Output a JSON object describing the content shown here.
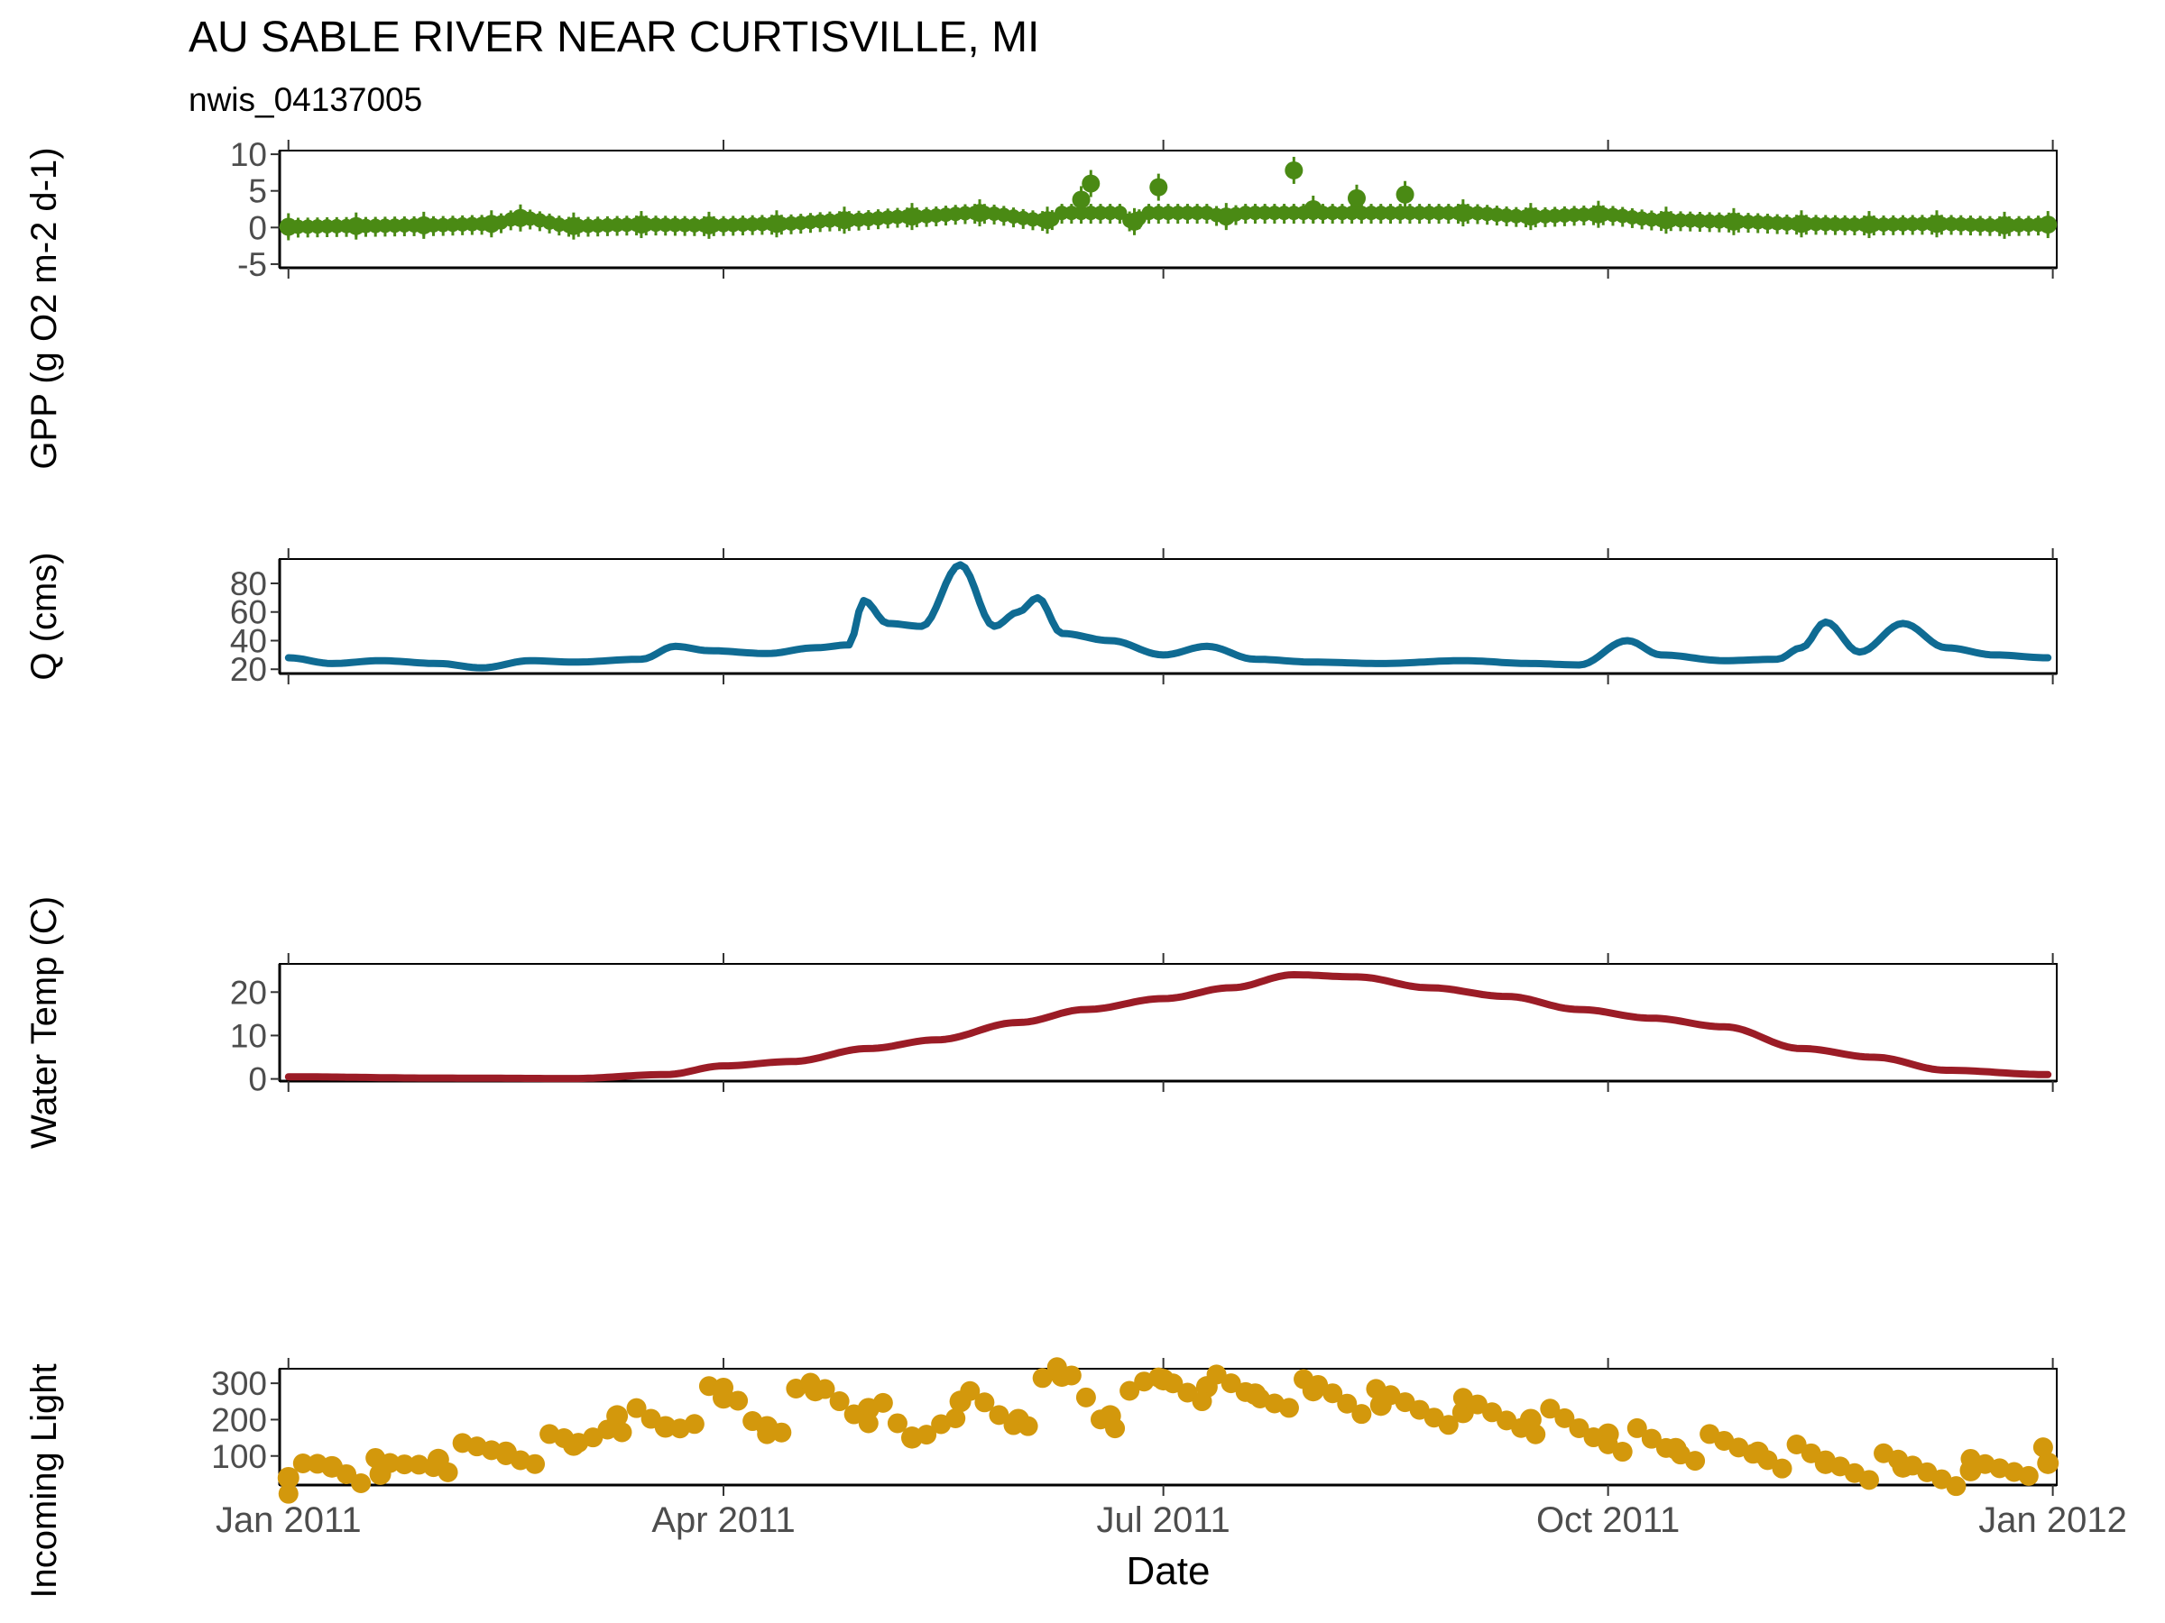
{
  "title": "AU SABLE RIVER NEAR CURTISVILLE, MI",
  "subtitle": "nwis_04137005",
  "chart_data": [
    {
      "type": "scatter",
      "name": "gpp",
      "ylabel": "GPP (g O2 m-2 d-1)",
      "ylim": [
        -5.5,
        10.5
      ],
      "yticks": [
        -5,
        0,
        5,
        10
      ],
      "ytick_labels": [
        "-5",
        "0",
        "5",
        "10"
      ],
      "color": "#4a8a14",
      "series": [
        {
          "points": [
            [
              "2011-01-01",
              0.1
            ],
            [
              "2011-01-15",
              0.2
            ],
            [
              "2011-01-29",
              0.3
            ],
            [
              "2011-02-12",
              0.5
            ],
            [
              "2011-02-18",
              1.3
            ],
            [
              "2011-03-01",
              0.2
            ],
            [
              "2011-03-15",
              0.4
            ],
            [
              "2011-03-29",
              0.3
            ],
            [
              "2011-04-12",
              0.5
            ],
            [
              "2011-04-26",
              1.0
            ],
            [
              "2011-05-10",
              1.5
            ],
            [
              "2011-05-24",
              2.0
            ],
            [
              "2011-06-07",
              1.0
            ],
            [
              "2011-06-14",
              3.8
            ],
            [
              "2011-06-16",
              6.0
            ],
            [
              "2011-06-25",
              0.8
            ],
            [
              "2011-06-30",
              5.5
            ],
            [
              "2011-07-14",
              1.5
            ],
            [
              "2011-07-28",
              7.8
            ],
            [
              "2011-08-01",
              2.5
            ],
            [
              "2011-08-10",
              4.0
            ],
            [
              "2011-08-20",
              4.5
            ],
            [
              "2011-09-01",
              2.0
            ],
            [
              "2011-09-15",
              1.5
            ],
            [
              "2011-09-29",
              1.8
            ],
            [
              "2011-10-13",
              1.0
            ],
            [
              "2011-10-27",
              0.8
            ],
            [
              "2011-11-10",
              0.5
            ],
            [
              "2011-11-24",
              0.4
            ],
            [
              "2011-12-08",
              0.5
            ],
            [
              "2011-12-22",
              0.3
            ],
            [
              "2011-12-31",
              0.4
            ]
          ]
        }
      ]
    },
    {
      "type": "line",
      "name": "discharge",
      "ylabel": "Q (cms)",
      "ylim": [
        17,
        97
      ],
      "yticks": [
        20,
        40,
        60,
        80
      ],
      "ytick_labels": [
        "20",
        "40",
        "60",
        "80"
      ],
      "color": "#0f6b93",
      "series": [
        {
          "points": [
            [
              "2011-01-01",
              28
            ],
            [
              "2011-01-10",
              24
            ],
            [
              "2011-01-20",
              26
            ],
            [
              "2011-02-01",
              24
            ],
            [
              "2011-02-10",
              21
            ],
            [
              "2011-02-20",
              26
            ],
            [
              "2011-03-01",
              25
            ],
            [
              "2011-03-15",
              27
            ],
            [
              "2011-03-22",
              36
            ],
            [
              "2011-03-29",
              33
            ],
            [
              "2011-04-10",
              31
            ],
            [
              "2011-04-20",
              35
            ],
            [
              "2011-04-27",
              37
            ],
            [
              "2011-04-30",
              68
            ],
            [
              "2011-05-05",
              52
            ],
            [
              "2011-05-12",
              50
            ],
            [
              "2011-05-20",
              93
            ],
            [
              "2011-05-27",
              50
            ],
            [
              "2011-06-01",
              60
            ],
            [
              "2011-06-05",
              70
            ],
            [
              "2011-06-10",
              45
            ],
            [
              "2011-06-20",
              40
            ],
            [
              "2011-07-01",
              30
            ],
            [
              "2011-07-10",
              36
            ],
            [
              "2011-07-20",
              27
            ],
            [
              "2011-08-01",
              25
            ],
            [
              "2011-08-15",
              24
            ],
            [
              "2011-09-01",
              26
            ],
            [
              "2011-09-15",
              24
            ],
            [
              "2011-09-25",
              23
            ],
            [
              "2011-10-05",
              40
            ],
            [
              "2011-10-12",
              30
            ],
            [
              "2011-10-25",
              26
            ],
            [
              "2011-11-05",
              27
            ],
            [
              "2011-11-10",
              35
            ],
            [
              "2011-11-15",
              53
            ],
            [
              "2011-11-22",
              32
            ],
            [
              "2011-12-01",
              52
            ],
            [
              "2011-12-10",
              35
            ],
            [
              "2011-12-20",
              30
            ],
            [
              "2011-12-31",
              28
            ]
          ]
        }
      ]
    },
    {
      "type": "line",
      "name": "water-temp",
      "ylabel": "Water Temp (C)",
      "ylim": [
        -0.5,
        26.5
      ],
      "yticks": [
        0,
        10,
        20
      ],
      "ytick_labels": [
        "0",
        "10",
        "20"
      ],
      "color": "#9b1c26",
      "series": [
        {
          "points": [
            [
              "2011-01-01",
              0.5
            ],
            [
              "2011-02-01",
              0.2
            ],
            [
              "2011-03-01",
              0.1
            ],
            [
              "2011-03-20",
              1.0
            ],
            [
              "2011-04-01",
              3.0
            ],
            [
              "2011-04-15",
              4.0
            ],
            [
              "2011-05-01",
              7.0
            ],
            [
              "2011-05-15",
              9.0
            ],
            [
              "2011-06-01",
              13.0
            ],
            [
              "2011-06-15",
              16.0
            ],
            [
              "2011-07-01",
              18.5
            ],
            [
              "2011-07-15",
              21.0
            ],
            [
              "2011-07-28",
              24.0
            ],
            [
              "2011-08-10",
              23.5
            ],
            [
              "2011-08-25",
              21.0
            ],
            [
              "2011-09-10",
              19.0
            ],
            [
              "2011-09-25",
              16.0
            ],
            [
              "2011-10-10",
              14.0
            ],
            [
              "2011-10-25",
              12.0
            ],
            [
              "2011-11-10",
              7.0
            ],
            [
              "2011-11-25",
              5.0
            ],
            [
              "2011-12-10",
              2.0
            ],
            [
              "2011-12-31",
              1.0
            ]
          ]
        }
      ]
    },
    {
      "type": "scatter",
      "name": "light",
      "ylabel": "Incoming Light",
      "ylim": [
        20,
        340
      ],
      "yticks": [
        100,
        200,
        300
      ],
      "ytick_labels": [
        "100",
        "200",
        "300"
      ],
      "color": "#d3980c",
      "series": [
        {
          "points": [
            [
              "2011-01-01",
              40
            ],
            [
              "2011-01-10",
              70
            ],
            [
              "2011-01-20",
              50
            ],
            [
              "2011-02-01",
              90
            ],
            [
              "2011-02-15",
              110
            ],
            [
              "2011-03-01",
              130
            ],
            [
              "2011-03-10",
              210
            ],
            [
              "2011-03-20",
              180
            ],
            [
              "2011-04-01",
              260
            ],
            [
              "2011-04-10",
              180
            ],
            [
              "2011-04-20",
              280
            ],
            [
              "2011-05-01",
              230
            ],
            [
              "2011-05-10",
              150
            ],
            [
              "2011-05-20",
              250
            ],
            [
              "2011-06-01",
              200
            ],
            [
              "2011-06-10",
              320
            ],
            [
              "2011-06-20",
              210
            ],
            [
              "2011-07-01",
              310
            ],
            [
              "2011-07-10",
              290
            ],
            [
              "2011-07-20",
              270
            ],
            [
              "2011-08-01",
              280
            ],
            [
              "2011-08-15",
              240
            ],
            [
              "2011-09-01",
              220
            ],
            [
              "2011-09-15",
              200
            ],
            [
              "2011-10-01",
              160
            ],
            [
              "2011-10-15",
              120
            ],
            [
              "2011-11-01",
              110
            ],
            [
              "2011-11-15",
              80
            ],
            [
              "2011-12-01",
              70
            ],
            [
              "2011-12-15",
              60
            ],
            [
              "2011-12-31",
              80
            ]
          ]
        }
      ]
    }
  ],
  "xaxis": {
    "label": "Date",
    "range": [
      "2011-01-01",
      "2011-12-31"
    ],
    "ticks": [
      "2011-01-01",
      "2011-04-01",
      "2011-07-01",
      "2011-10-01",
      "2012-01-01"
    ],
    "tick_labels": [
      "Jan 2011",
      "Apr 2011",
      "Jul 2011",
      "Oct 2011",
      "Jan 2012"
    ]
  }
}
